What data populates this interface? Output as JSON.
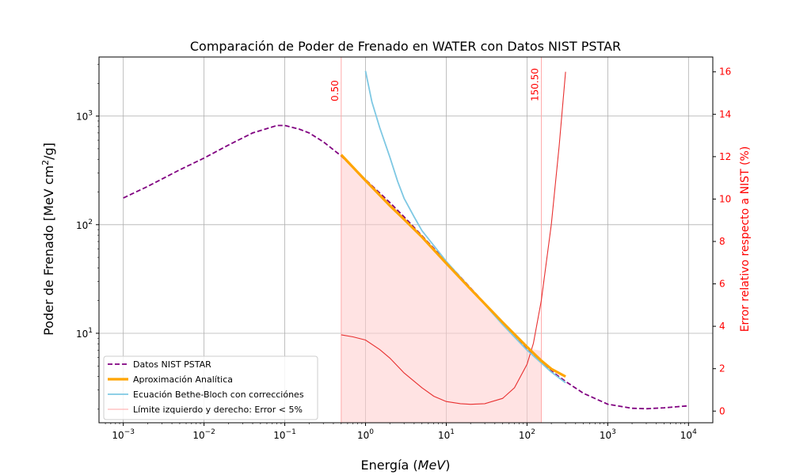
{
  "chart_data": {
    "type": "line",
    "title": "Comparación de Poder de Frenado en WATER con Datos NIST PSTAR",
    "xlabel": "Energía (MeV)",
    "xlabel_text": "Energía (",
    "xlabel_unit": "MeV",
    "xlabel_close": ")",
    "ylabel": "Poder de Frenado [MeV cm²/g]",
    "y2label": "Error relativo respecto a NIST (%)",
    "xscale": "log",
    "yscale": "log",
    "xlim": [
      0.0005,
      20000
    ],
    "ylim": [
      1.5,
      3500
    ],
    "y2lim": [
      -0.55,
      16.7
    ],
    "grid": true,
    "legend_position": "lower-left",
    "x_ticks": [
      {
        "value": 0.001,
        "base": "10",
        "exp": "−3"
      },
      {
        "value": 0.01,
        "base": "10",
        "exp": "−2"
      },
      {
        "value": 0.1,
        "base": "10",
        "exp": "−1"
      },
      {
        "value": 1,
        "base": "10",
        "exp": "0"
      },
      {
        "value": 10,
        "base": "10",
        "exp": "1"
      },
      {
        "value": 100,
        "base": "10",
        "exp": "2"
      },
      {
        "value": 1000,
        "base": "10",
        "exp": "3"
      },
      {
        "value": 10000,
        "base": "10",
        "exp": "4"
      }
    ],
    "y_ticks": [
      {
        "value": 10,
        "base": "10",
        "exp": "1"
      },
      {
        "value": 100,
        "base": "10",
        "exp": "2"
      },
      {
        "value": 1000,
        "base": "10",
        "exp": "3"
      }
    ],
    "y2_ticks": [
      {
        "value": 0,
        "label": "0"
      },
      {
        "value": 2,
        "label": "2"
      },
      {
        "value": 4,
        "label": "4"
      },
      {
        "value": 6,
        "label": "6"
      },
      {
        "value": 8,
        "label": "8"
      },
      {
        "value": 10,
        "label": "10"
      },
      {
        "value": 12,
        "label": "12"
      },
      {
        "value": 14,
        "label": "14"
      },
      {
        "value": 16,
        "label": "16"
      }
    ],
    "vlines": [
      {
        "x": 0.5,
        "label": "0.50"
      },
      {
        "x": 150.5,
        "label": "150.50"
      }
    ],
    "series": [
      {
        "name": "Datos NIST PSTAR",
        "axis": "left",
        "color": "#800080",
        "style": "dashed",
        "x": [
          0.001,
          0.002,
          0.005,
          0.01,
          0.02,
          0.04,
          0.08,
          0.1,
          0.15,
          0.2,
          0.3,
          0.5,
          1,
          2,
          3,
          5,
          10,
          20,
          50,
          100,
          200,
          300,
          500,
          1000,
          2000,
          3000,
          5000,
          10000
        ],
        "y": [
          176,
          225,
          320,
          410,
          540,
          700,
          820,
          820,
          760,
          700,
          580,
          430,
          260,
          160,
          118,
          79,
          45.7,
          26.1,
          12.5,
          7.29,
          4.5,
          3.6,
          2.8,
          2.22,
          2.04,
          2.02,
          2.06,
          2.15
        ]
      },
      {
        "name": "Aproximación Analítica",
        "axis": "left",
        "color": "#FFA500",
        "style": "solid-thick",
        "x": [
          0.5,
          1,
          2,
          3,
          5,
          10,
          20,
          50,
          100,
          150,
          200,
          300
        ],
        "y": [
          440,
          255,
          150,
          112,
          77,
          44,
          25.5,
          12.6,
          7.5,
          5.6,
          4.7,
          4.0
        ]
      },
      {
        "name": "Ecuación Bethe-Bloch con correcciónes",
        "axis": "left",
        "color": "#7EC8E3",
        "style": "solid",
        "x": [
          1,
          1.2,
          1.5,
          2,
          2.5,
          3,
          4,
          5,
          10,
          20,
          50,
          100,
          200,
          300
        ],
        "y": [
          2600,
          1350,
          780,
          420,
          250,
          175,
          118,
          88,
          46,
          25.8,
          12.0,
          7.0,
          4.4,
          3.5
        ]
      },
      {
        "name": "Límite izquierdo y derecho: Error < 5%",
        "axis": "left",
        "color": "#FFB6B6",
        "style": "vline-legend"
      },
      {
        "name": "Error relativo",
        "axis": "right",
        "color": "#E83030",
        "style": "solid-thin",
        "x": [
          0.5,
          0.7,
          1,
          1.5,
          2,
          3,
          5,
          7,
          10,
          15,
          20,
          30,
          50,
          70,
          100,
          120,
          150,
          200,
          250,
          300
        ],
        "y": [
          3.6,
          3.5,
          3.35,
          2.9,
          2.5,
          1.8,
          1.1,
          0.7,
          0.45,
          0.35,
          0.32,
          0.35,
          0.6,
          1.1,
          2.2,
          3.2,
          5.2,
          8.8,
          12.5,
          16.0
        ]
      }
    ]
  }
}
